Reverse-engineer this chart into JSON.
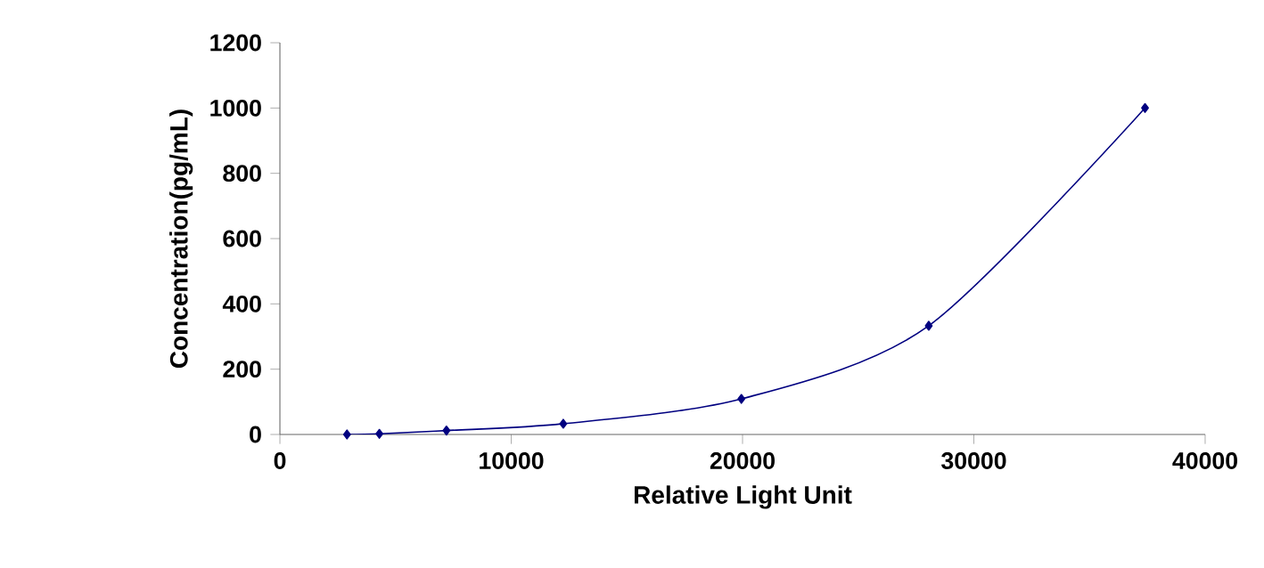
{
  "chart_data": {
    "type": "line",
    "xlabel": "Relative Light Unit",
    "ylabel": "Concentration(pg/mL)",
    "x": [
      2900,
      4300,
      7200,
      12250,
      19950,
      28050,
      37400
    ],
    "series": [
      {
        "color": "#000080",
        "values": [
          0,
          2,
          12,
          33,
          109,
          333,
          1000
        ]
      }
    ],
    "xlim": [
      0,
      40000
    ],
    "xticks": [
      0,
      10000,
      20000,
      30000,
      40000
    ],
    "ylim": [
      0,
      1200
    ],
    "yticks": [
      0,
      200,
      400,
      600,
      800,
      1000,
      1200
    ],
    "grid": false,
    "marker": "diamond",
    "line_style": "solid"
  }
}
